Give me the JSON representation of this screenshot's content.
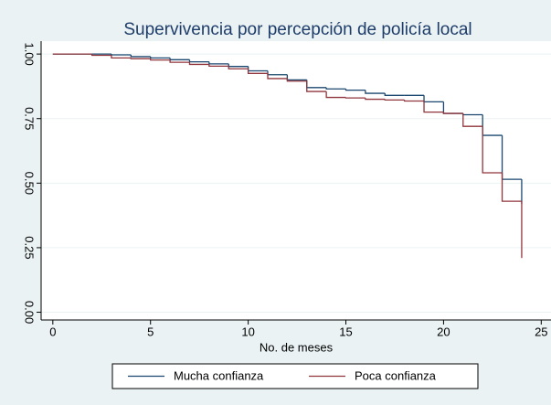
{
  "chart_data": {
    "type": "step",
    "title": "Supervivencia por percepción de policía local",
    "x_label": "No. de meses",
    "x": [
      0,
      1,
      2,
      3,
      4,
      5,
      6,
      7,
      8,
      9,
      10,
      11,
      12,
      13,
      14,
      15,
      16,
      17,
      18,
      19,
      20,
      21,
      22,
      23,
      24
    ],
    "series": [
      {
        "name": "Mucha confianza",
        "color": "#1a476f",
        "values": [
          1.0,
          1.0,
          1.0,
          0.997,
          0.99,
          0.985,
          0.978,
          0.97,
          0.962,
          0.952,
          0.935,
          0.92,
          0.9,
          0.87,
          0.865,
          0.86,
          0.848,
          0.84,
          0.84,
          0.815,
          0.77,
          0.765,
          0.685,
          0.515,
          0.42
        ]
      },
      {
        "name": "Poca confianza",
        "color": "#90353b",
        "values": [
          1.0,
          1.0,
          0.995,
          0.985,
          0.982,
          0.977,
          0.968,
          0.96,
          0.953,
          0.943,
          0.925,
          0.905,
          0.895,
          0.855,
          0.832,
          0.83,
          0.825,
          0.822,
          0.818,
          0.775,
          0.77,
          0.72,
          0.54,
          0.43,
          0.21
        ]
      }
    ],
    "xlim": [
      -0.6,
      25.5
    ],
    "ylim": [
      -0.03,
      1.05
    ],
    "xticks": [
      0,
      5,
      10,
      15,
      20,
      25
    ],
    "yticks": [
      {
        "value": 0,
        "label": "0.00"
      },
      {
        "value": 0.25,
        "label": "0.25"
      },
      {
        "value": 0.5,
        "label": "0.50"
      },
      {
        "value": 0.75,
        "label": "0.75"
      },
      {
        "value": 1,
        "label": "1.00"
      }
    ],
    "grid": true,
    "legend_position": "bottom"
  }
}
